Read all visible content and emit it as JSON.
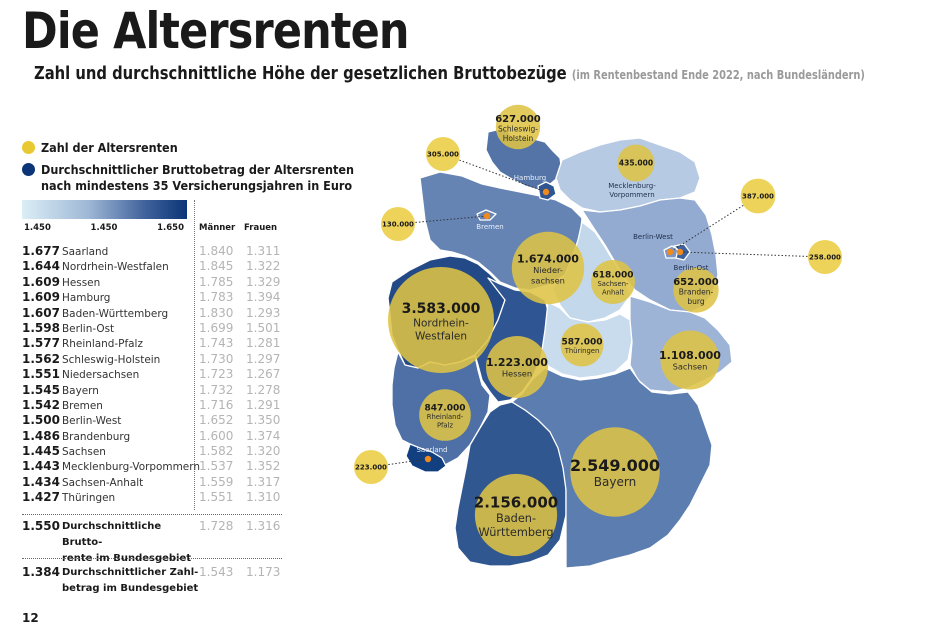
{
  "header": {
    "title": "Die Altersrenten",
    "subtitle": "Zahl und durchschnittliche Höhe der gesetzlichen Bruttobezüge",
    "subtitle_note": "(im Rentenbestand Ende 2022, nach Bundesländern)"
  },
  "legend": {
    "count_label": "Zahl der Altersrenten",
    "count_color": "#e8c931",
    "avg_label_line1": "Durchschnittlicher Bruttobetrag der Altersrenten",
    "avg_label_line2": "nach mindestens 35 Versicherungsjahren in Euro",
    "avg_color": "#0b3577",
    "scale_labels": [
      "1.450",
      "1.450",
      "1.650"
    ]
  },
  "table": {
    "col_men": "Männer",
    "col_women": "Frauen",
    "rows": [
      {
        "avg": "1.677",
        "state": "Saarland",
        "men": "1.840",
        "women": "1.311"
      },
      {
        "avg": "1.644",
        "state": "Nordrhein-Westfalen",
        "men": "1.845",
        "women": "1.322"
      },
      {
        "avg": "1.609",
        "state": "Hessen",
        "men": "1.785",
        "women": "1.329"
      },
      {
        "avg": "1.609",
        "state": "Hamburg",
        "men": "1.783",
        "women": "1.394"
      },
      {
        "avg": "1.607",
        "state": "Baden-Württemberg",
        "men": "1.830",
        "women": "1.293"
      },
      {
        "avg": "1.598",
        "state": "Berlin-Ost",
        "men": "1.699",
        "women": "1.501"
      },
      {
        "avg": "1.577",
        "state": "Rheinland-Pfalz",
        "men": "1.743",
        "women": "1.281"
      },
      {
        "avg": "1.562",
        "state": "Schleswig-Holstein",
        "men": "1.730",
        "women": "1.297"
      },
      {
        "avg": "1.551",
        "state": "Niedersachsen",
        "men": "1.723",
        "women": "1.267"
      },
      {
        "avg": "1.545",
        "state": "Bayern",
        "men": "1.732",
        "women": "1.278"
      },
      {
        "avg": "1.542",
        "state": "Bremen",
        "men": "1.716",
        "women": "1.291"
      },
      {
        "avg": "1.500",
        "state": "Berlin-West",
        "men": "1.652",
        "women": "1.350"
      },
      {
        "avg": "1.486",
        "state": "Brandenburg",
        "men": "1.600",
        "women": "1.374"
      },
      {
        "avg": "1.445",
        "state": "Sachsen",
        "men": "1.582",
        "women": "1.320"
      },
      {
        "avg": "1.443",
        "state": "Mecklenburg-Vorpommern",
        "men": "1.537",
        "women": "1.352"
      },
      {
        "avg": "1.434",
        "state": "Sachsen-Anhalt",
        "men": "1.559",
        "women": "1.317"
      },
      {
        "avg": "1.427",
        "state": "Thüringen",
        "men": "1.551",
        "women": "1.310"
      }
    ],
    "summary": [
      {
        "avg": "1.550",
        "label_line1": "Durchschnittliche Brutto-",
        "label_line2": "rente im Bundesgebiet",
        "men": "1.728",
        "women": "1.316"
      },
      {
        "avg": "1.384",
        "label_line1": "Durchschnittlicher Zahl-",
        "label_line2": "betrag im Bundesgebiet",
        "men": "1.543",
        "women": "1.173"
      }
    ]
  },
  "page_number": "12",
  "chart_data": {
    "type": "map-bubble",
    "title": "Die Altersrenten",
    "subtitle": "Zahl und durchschnittliche Höhe der gesetzlichen Bruttobezüge (im Rentenbestand Ende 2022, nach Bundesländern)",
    "color_scale": {
      "label": "Durchschnittlicher Bruttobetrag der Altersrenten nach mindestens 35 Versicherungsjahren in Euro",
      "tick_labels": [
        "1.450",
        "1.450",
        "1.650"
      ],
      "min_color": "#dbeef6",
      "max_color": "#0b3577"
    },
    "bubble_legend": "Zahl der Altersrenten",
    "states": [
      {
        "name": "Schleswig-Holstein",
        "count": 627000,
        "count_label": "627.000",
        "bubble_label": "Schleswig-Holstein",
        "avg": 1562,
        "color": "#5474a8"
      },
      {
        "name": "Hamburg",
        "count": 305000,
        "count_label": "305.000",
        "bubble_label": "",
        "map_label": "Hamburg",
        "avg": 1609,
        "color": "#2f5592"
      },
      {
        "name": "Mecklenburg-Vorpommern",
        "count": 435000,
        "count_label": "435.000",
        "bubble_label": "Mecklenburg-Vorpommern",
        "avg": 1443,
        "color": "#b7cae3"
      },
      {
        "name": "Bremen",
        "count": 130000,
        "count_label": "130.000",
        "bubble_label": "",
        "map_label": "Bremen",
        "avg": 1542,
        "color": "#6584b4"
      },
      {
        "name": "Niedersachsen",
        "count": 1674000,
        "count_label": "1.674.000",
        "bubble_label": "Nieder-sachsen",
        "avg": 1551,
        "color": "#6584b4"
      },
      {
        "name": "Berlin-West",
        "count": 387000,
        "count_label": "387.000",
        "bubble_label": "",
        "map_label": "Berlin-West",
        "avg": 1500,
        "color": "#7b96c2"
      },
      {
        "name": "Berlin-Ost",
        "count": 258000,
        "count_label": "258.000",
        "bubble_label": "",
        "map_label": "Berlin-Ost",
        "avg": 1598,
        "color": "#3d619d"
      },
      {
        "name": "Brandenburg",
        "count": 652000,
        "count_label": "652.000",
        "bubble_label": "Branden-burg",
        "avg": 1486,
        "color": "#93abd0"
      },
      {
        "name": "Sachsen-Anhalt",
        "count": 618000,
        "count_label": "618.000",
        "bubble_label": "Sachsen-Anhalt",
        "avg": 1434,
        "color": "#c3d8eb"
      },
      {
        "name": "Nordrhein-Westfalen",
        "count": 3583000,
        "count_label": "3.583.000",
        "bubble_label": "Nordrhein-Westfalen",
        "avg": 1644,
        "color": "#234a86"
      },
      {
        "name": "Hessen",
        "count": 1223000,
        "count_label": "1.223.000",
        "bubble_label": "Hessen",
        "avg": 1609,
        "color": "#2f5592"
      },
      {
        "name": "Thüringen",
        "count": 587000,
        "count_label": "587.000",
        "bubble_label": "Thüringen",
        "avg": 1427,
        "color": "#c8dcee"
      },
      {
        "name": "Sachsen",
        "count": 1108000,
        "count_label": "1.108.000",
        "bubble_label": "Sachsen",
        "avg": 1445,
        "color": "#9db4d6"
      },
      {
        "name": "Rheinland-Pfalz",
        "count": 847000,
        "count_label": "847.000",
        "bubble_label": "Rheinland-Pfalz",
        "avg": 1577,
        "color": "#4e70a6"
      },
      {
        "name": "Saarland",
        "count": 223000,
        "count_label": "223.000",
        "bubble_label": "",
        "map_label": "Saarland",
        "avg": 1677,
        "color": "#123f80"
      },
      {
        "name": "Baden-Württemberg",
        "count": 2156000,
        "count_label": "2.156.000",
        "bubble_label": "Baden-Württemberg",
        "avg": 1607,
        "color": "#30578f"
      },
      {
        "name": "Bayern",
        "count": 2549000,
        "count_label": "2.549.000",
        "bubble_label": "Bayern",
        "avg": 1545,
        "color": "#5c7db0"
      }
    ]
  }
}
